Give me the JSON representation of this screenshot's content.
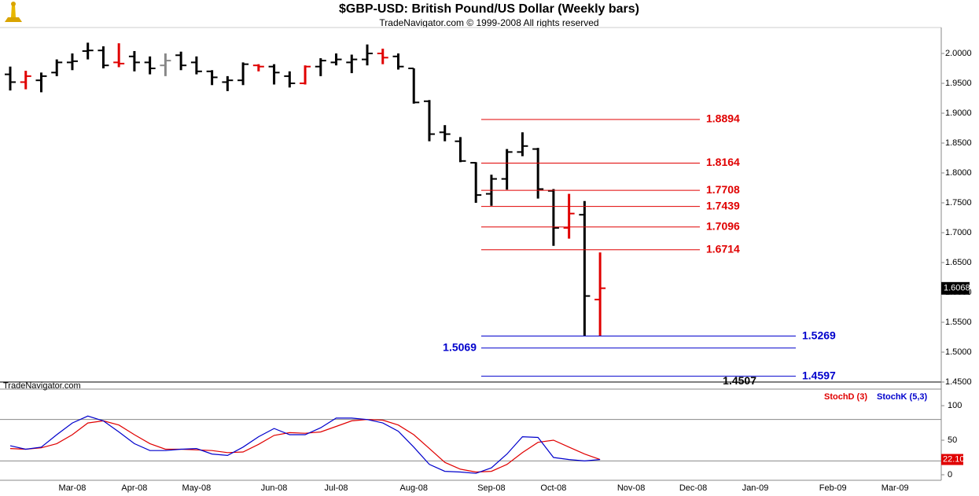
{
  "chart_data": [
    {
      "type": "ohlc",
      "title": "$GBP-USD:  British Pound/US Dollar  (Weekly bars)",
      "subtitle": "TradeNavigator.com © 1999-2008 All rights reserved",
      "watermark": "TradeNavigator.com",
      "open": [
        1.965,
        1.952,
        1.955,
        1.968,
        1.985,
        2.004,
        2.005,
        1.985,
        1.995,
        1.985,
        1.98,
        1.997,
        1.985,
        1.97,
        1.952,
        1.955,
        1.98,
        1.978,
        1.962,
        1.95,
        1.978,
        1.985,
        1.985,
        1.99,
        2.0,
        1.995,
        1.975,
        1.92,
        1.868,
        1.853,
        1.817,
        1.765,
        1.79,
        1.835,
        1.84,
        1.77,
        1.708,
        1.73,
        1.588,
        null,
        null,
        null,
        null,
        null,
        null,
        null,
        null,
        null,
        null,
        null,
        null,
        null,
        null,
        null,
        null,
        null,
        null,
        null,
        null,
        null
      ],
      "high": [
        1.978,
        1.971,
        1.968,
        1.99,
        2.0,
        2.018,
        2.012,
        2.017,
        2.004,
        1.995,
        2.0,
        2.003,
        1.995,
        1.972,
        1.962,
        1.985,
        1.982,
        1.982,
        1.97,
        1.98,
        1.992,
        2.0,
        1.998,
        2.015,
        2.008,
        2.0,
        1.975,
        1.922,
        1.88,
        1.86,
        1.818,
        1.797,
        1.84,
        1.868,
        1.842,
        1.773,
        1.765,
        1.753,
        1.667,
        null,
        null,
        null,
        null,
        null,
        null,
        null,
        null,
        null,
        null,
        null,
        null,
        null,
        null,
        null,
        null,
        null,
        null,
        null,
        null,
        null
      ],
      "low": [
        1.938,
        1.94,
        1.935,
        1.962,
        1.972,
        1.99,
        1.975,
        1.977,
        1.97,
        1.965,
        1.962,
        1.972,
        1.965,
        1.947,
        1.937,
        1.947,
        1.97,
        1.948,
        1.943,
        1.948,
        1.962,
        1.98,
        1.967,
        1.98,
        1.982,
        1.973,
        1.916,
        1.853,
        1.853,
        1.818,
        1.75,
        1.745,
        1.772,
        1.828,
        1.757,
        1.678,
        1.69,
        1.527,
        1.527,
        null,
        null,
        null,
        null,
        null,
        null,
        null,
        null,
        null,
        null,
        null,
        null,
        null,
        null,
        null,
        null,
        null,
        null,
        null,
        null,
        null
      ],
      "close": [
        1.952,
        1.962,
        1.962,
        1.985,
        1.987,
        2.005,
        1.98,
        1.983,
        1.985,
        1.975,
        1.988,
        1.98,
        1.97,
        1.96,
        1.955,
        1.982,
        1.978,
        1.968,
        1.95,
        1.978,
        1.988,
        1.99,
        1.99,
        2.0,
        1.993,
        1.978,
        1.918,
        1.865,
        1.865,
        1.82,
        1.763,
        1.79,
        1.835,
        1.845,
        1.773,
        1.708,
        1.732,
        1.594,
        1.607,
        null,
        null,
        null,
        null,
        null,
        null,
        null,
        null,
        null,
        null,
        null,
        null,
        null,
        null,
        null,
        null,
        null,
        null,
        null,
        null,
        null
      ],
      "colors": [
        "#000",
        "#e00000",
        "#000",
        "#000",
        "#000",
        "#000",
        "#000",
        "#e00000",
        "#000",
        "#000",
        "#888",
        "#000",
        "#000",
        "#000",
        "#000",
        "#000",
        "#e00000",
        "#000",
        "#000",
        "#e00000",
        "#000",
        "#000",
        "#000",
        "#000",
        "#e00000",
        "#000",
        "#000",
        "#000",
        "#000",
        "#000",
        "#000",
        "#000",
        "#000",
        "#000",
        "#000",
        "#000",
        "#e00000",
        "#000",
        "#e00000",
        null,
        null,
        null,
        null,
        null,
        null,
        null,
        null,
        null,
        null,
        null,
        null,
        null,
        null,
        null,
        null,
        null,
        null,
        null,
        null,
        null
      ],
      "ylim": [
        1.45,
        2.0434
      ],
      "yticks": [
        {
          "value": 1.45,
          "label": "1.4500"
        },
        {
          "value": 1.5,
          "label": "1.5000"
        },
        {
          "value": 1.55,
          "label": "1.5500"
        },
        {
          "value": 1.6,
          "label": "1.6000"
        },
        {
          "value": 1.65,
          "label": "1.6500"
        },
        {
          "value": 1.7,
          "label": "1.7000"
        },
        {
          "value": 1.75,
          "label": "1.7500"
        },
        {
          "value": 1.8,
          "label": "1.8000"
        },
        {
          "value": 1.85,
          "label": "1.8500"
        },
        {
          "value": 1.9,
          "label": "1.9000"
        },
        {
          "value": 1.95,
          "label": "1.9500"
        },
        {
          "value": 2.0,
          "label": "2.0000"
        }
      ],
      "fib_levels": {
        "color": "#e00000",
        "values": [
          1.8894,
          1.8164,
          1.7708,
          1.7439,
          1.7096,
          1.6714
        ]
      },
      "support_levels": {
        "color": "#0000cc",
        "values": [
          1.5269,
          1.5069,
          1.4597
        ],
        "label_sides": [
          "right",
          "left",
          "right"
        ]
      },
      "annotation": {
        "value": 1.4507,
        "color": "#000"
      },
      "last_price": 1.6068
    },
    {
      "type": "line",
      "categories": [
        null,
        null,
        null,
        null,
        "Mar-08",
        null,
        null,
        null,
        "Apr-08",
        null,
        null,
        null,
        "May-08",
        null,
        null,
        null,
        null,
        "Jun-08",
        null,
        null,
        null,
        "Jul-08",
        null,
        null,
        null,
        null,
        "Aug-08",
        null,
        null,
        null,
        null,
        "Sep-08",
        null,
        null,
        null,
        "Oct-08",
        null,
        null,
        null,
        null,
        "Nov-08",
        null,
        null,
        null,
        "Dec-08",
        null,
        null,
        null,
        "Jan-09",
        null,
        null,
        null,
        null,
        "Feb-09",
        null,
        null,
        null,
        "Mar-09",
        null,
        null
      ],
      "series": [
        {
          "name": "StochD (3)",
          "color": "#e00000",
          "values": [
            38,
            37,
            39,
            45,
            58,
            75,
            78,
            72,
            58,
            45,
            37,
            37,
            36,
            35,
            32,
            33,
            44,
            57,
            61,
            60,
            62,
            70,
            78,
            80,
            79,
            72,
            58,
            38,
            18,
            8,
            4,
            5,
            15,
            32,
            47,
            50,
            40,
            30,
            22,
            null,
            null,
            null,
            null,
            null,
            null,
            null,
            null,
            null,
            null,
            null,
            null,
            null,
            null,
            null,
            null,
            null,
            null,
            null,
            null,
            null
          ]
        },
        {
          "name": "StochK (5,3)",
          "color": "#0000cc",
          "values": [
            42,
            37,
            40,
            58,
            75,
            85,
            78,
            62,
            45,
            35,
            35,
            37,
            38,
            30,
            28,
            40,
            55,
            67,
            58,
            58,
            68,
            82,
            82,
            80,
            75,
            63,
            40,
            15,
            5,
            4,
            2,
            10,
            30,
            55,
            54,
            25,
            22,
            20,
            22,
            null,
            null,
            null,
            null,
            null,
            null,
            null,
            null,
            null,
            null,
            null,
            null,
            null,
            null,
            null,
            null,
            null,
            null,
            null,
            null,
            null
          ]
        }
      ],
      "ylim": [
        -8,
        124
      ],
      "yticks": [
        0,
        50,
        100
      ],
      "reference_lines": [
        80,
        20
      ],
      "last_value": {
        "value": 22.1,
        "label": "22.10"
      }
    }
  ]
}
